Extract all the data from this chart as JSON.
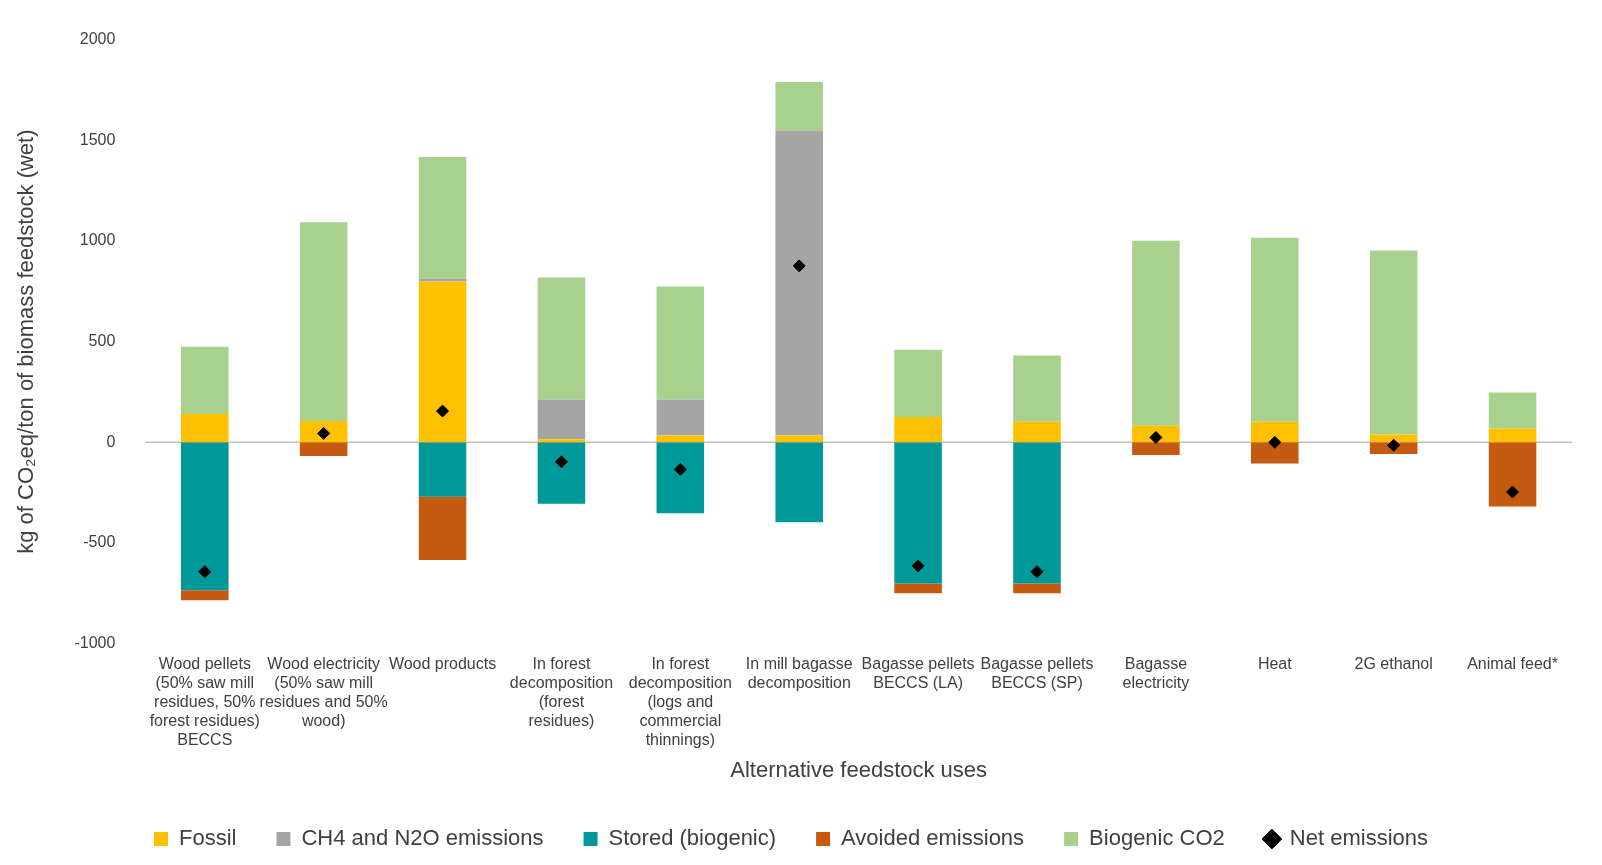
{
  "chart_data": {
    "type": "bar",
    "stacked": true,
    "xlabel": "Alternative feedstock uses",
    "ylabel": "kg of CO₂eq/ton of biomass feedstock (wet)",
    "categories": [
      "Wood pellets (50% saw mill residues, 50% forest residues) BECCS",
      "Wood electricity (50% saw mill residues and 50% wood)",
      "Wood products",
      "In forest decomposition (forest residues)",
      "In forest decomposition (logs and commercial thinnings)",
      "In mill bagasse decomposition",
      "Bagasse pellets BECCS (LA)",
      "Bagasse pellets BECCS (SP)",
      "Bagasse electricity",
      "Heat",
      "2G ethanol",
      "Animal feed*"
    ],
    "series": [
      {
        "name": "Fossil",
        "color": "#ffc000",
        "values": [
          140,
          106,
          798,
          15,
          34,
          34,
          126,
          102,
          82,
          102,
          39,
          68
        ]
      },
      {
        "name": "CH4 and N2O emissions",
        "color": "#a5a5a5",
        "values": [
          null,
          null,
          15,
          198,
          179,
          1514,
          null,
          null,
          null,
          null,
          null,
          null
        ]
      },
      {
        "name": "Stored (biogenic)",
        "color": "#009999",
        "values": [
          -735,
          null,
          -271,
          -305,
          -353,
          -397,
          -701,
          -701,
          null,
          null,
          null,
          null
        ]
      },
      {
        "name": "Avoided emissions",
        "color": "#c55a11",
        "values": [
          -50,
          -68,
          -314,
          null,
          null,
          null,
          -49,
          -49,
          -63,
          -106,
          -58,
          -319
        ]
      },
      {
        "name": "Biogenic CO2",
        "color": "#a9d18e",
        "values": [
          335,
          987,
          604,
          605,
          561,
          242,
          334,
          329,
          919,
          914,
          914,
          179
        ]
      },
      {
        "name": "Net emissions",
        "type": "scatter",
        "color": "#000000",
        "marker": "diamond",
        "values": [
          -643,
          44,
          155,
          -97,
          -135,
          876,
          -614,
          -643,
          24,
          0,
          -15,
          -247
        ]
      }
    ],
    "ylim": [
      -1000,
      2000
    ],
    "yticks": [
      -1000,
      -500,
      0,
      500,
      1000,
      1500,
      2000
    ],
    "grid": false,
    "ref_lines": [
      {
        "axis": "y",
        "value": 0,
        "color": "#bfbfbf"
      }
    ],
    "legend": "bottom"
  }
}
